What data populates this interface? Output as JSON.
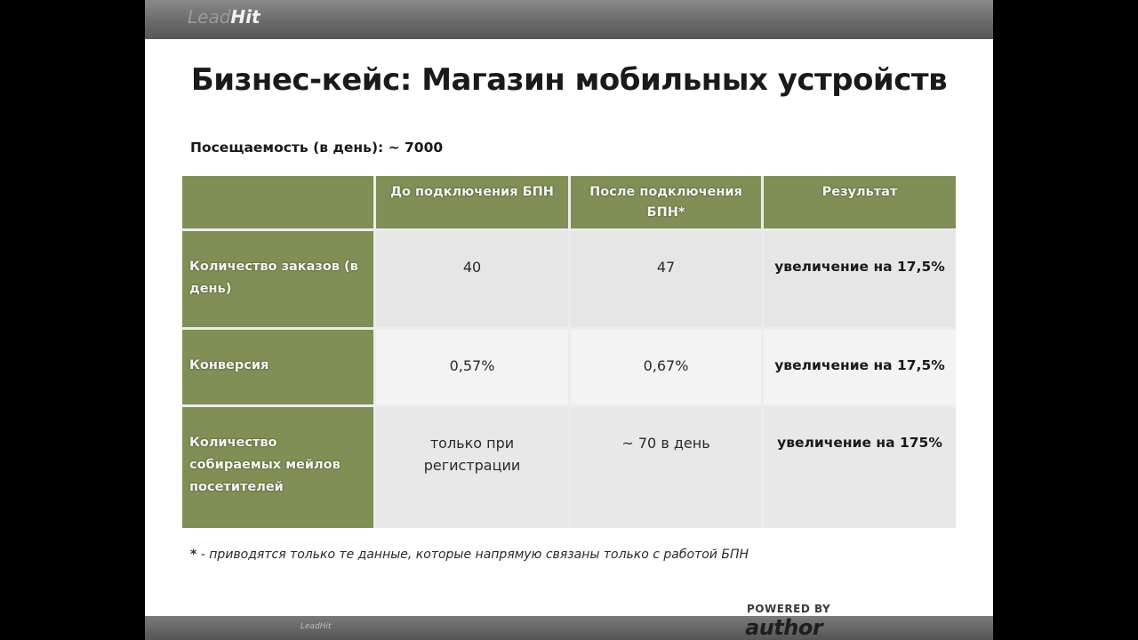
{
  "header": {
    "logo_part1": "Lead",
    "logo_part2": "Hit"
  },
  "slide": {
    "title": "Бизнес-кейс: Магазин мобильных устройств",
    "attendance": "Посещаемость (в день): ~ 7000"
  },
  "table": {
    "headers": [
      "",
      "До подключения БПН",
      "После подключения БПН*",
      "Результат"
    ],
    "rows": [
      {
        "label": "Количество заказов (в день)",
        "before": "40",
        "after": "47",
        "result": "увеличение на 17,5%"
      },
      {
        "label": "Конверсия",
        "before": "0,57%",
        "after": "0,67%",
        "result": "увеличение на 17,5%"
      },
      {
        "label": "Количество собираемых мейлов посетителей",
        "before": "только при регистрации",
        "after": "~ 70 в день",
        "result": "увеличение на 175%"
      }
    ]
  },
  "footnote": {
    "star": "*",
    "text": " - приводятся только те данные, которые напрямую связаны только с работой БПН"
  },
  "footer": {
    "bottom_logo": "LeadHit",
    "powered_by": "POWERED BY",
    "brand": "author"
  },
  "colors": {
    "header_green": "#7f8f56",
    "cell_gray": "#e6e6e6",
    "bar_gray": "#6a6a6a"
  }
}
